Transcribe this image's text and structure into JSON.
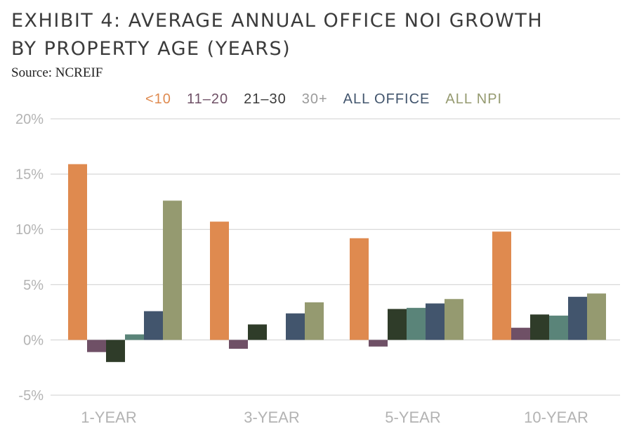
{
  "header": {
    "title_line1": "EXHIBIT 4: AVERAGE ANNUAL OFFICE NOI GROWTH",
    "title_line2": "BY PROPERTY AGE (YEARS)",
    "source": "Source: NCREIF"
  },
  "chart_data": {
    "type": "bar",
    "title": "EXHIBIT 4: AVERAGE ANNUAL OFFICE NOI GROWTH BY PROPERTY AGE (YEARS)",
    "categories": [
      "1-YEAR",
      "3-YEAR",
      "5-YEAR",
      "10-YEAR"
    ],
    "series": [
      {
        "name": "<10",
        "color": "#df8a4f",
        "values": [
          15.9,
          10.7,
          9.2,
          9.8
        ]
      },
      {
        "name": "11–20",
        "color": "#6f5066",
        "values": [
          -1.1,
          -0.8,
          -0.6,
          1.1
        ]
      },
      {
        "name": "21–30",
        "color": "#2f3c29",
        "values": [
          -2.0,
          1.4,
          2.8,
          2.3
        ]
      },
      {
        "name": "30+",
        "color": "#5a8479",
        "values": [
          0.5,
          null,
          2.9,
          2.2
        ]
      },
      {
        "name": "ALL OFFICE",
        "color": "#42556d",
        "values": [
          2.6,
          2.4,
          3.3,
          3.9
        ]
      },
      {
        "name": "ALL NPI",
        "color": "#959a70",
        "values": [
          12.6,
          3.4,
          3.7,
          4.2
        ]
      }
    ],
    "legend_label_colors": [
      "#df8a4f",
      "#6f5066",
      "#3a3a3a",
      "#9b9b9b",
      "#42556d",
      "#959a70"
    ],
    "ylim": [
      -5,
      20
    ],
    "yticks": [
      20,
      15,
      10,
      5,
      0,
      -5
    ],
    "ytick_labels": [
      "20%",
      "15%",
      "10%",
      "5%",
      "0%",
      "-5%"
    ],
    "xlabel": "",
    "ylabel": "",
    "grid": true,
    "legend_position": "top"
  }
}
